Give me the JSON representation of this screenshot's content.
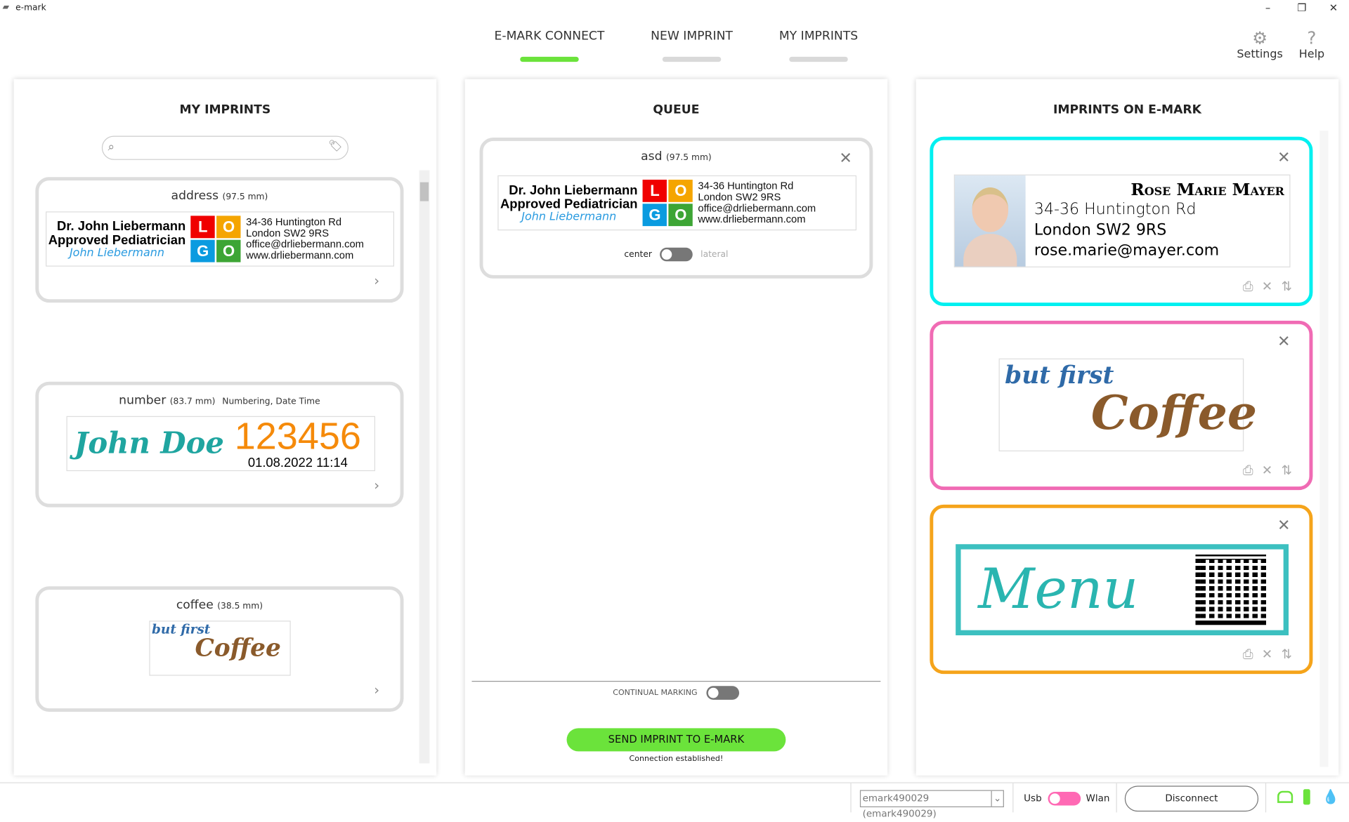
{
  "window": {
    "title": "e-mark",
    "minimize": "–",
    "restore": "❐",
    "close": "✕"
  },
  "nav": {
    "tabs": [
      {
        "label": "E-MARK CONNECT",
        "active": true
      },
      {
        "label": "NEW IMPRINT"
      },
      {
        "label": "MY IMPRINTS"
      }
    ],
    "settings": "Settings",
    "help": "Help",
    "accent": "#6be33b"
  },
  "my_imprints": {
    "title": "MY IMPRINTS",
    "search_placeholder": "",
    "items": [
      {
        "name": "address",
        "size": "(97.5 mm)"
      },
      {
        "name": "number",
        "size": "(83.7 mm)",
        "tags": "Numbering, Date Time",
        "preview_name": "John Doe",
        "preview_number": "123456",
        "preview_datetime": "01.08.2022 11:14"
      },
      {
        "name": "coffee",
        "size": "(38.5 mm)"
      }
    ]
  },
  "address_imprint": {
    "line1": "Dr. John Liebermann",
    "line2": "Approved Pediatrician",
    "signature": "John Liebermann",
    "logo": [
      "L",
      "O",
      "G",
      "O"
    ],
    "logo_colors": [
      "#f00000",
      "#f5a500",
      "#0a9be0",
      "#3da535"
    ],
    "right": [
      "34-36 Huntington Rd",
      "London SW2 9RS",
      "office@drliebermann.com",
      "www.drliebermann.com"
    ]
  },
  "coffee_imprint": {
    "line1": "but first",
    "line2": "Coffee"
  },
  "queue": {
    "title": "QUEUE",
    "item": {
      "name": "asd",
      "size": "(97.5 mm)"
    },
    "align_center": "center",
    "align_lateral": "lateral",
    "continual_marking": "CONTINUAL MARKING",
    "send_button": "SEND IMPRINT TO E-MARK",
    "status": "Connection established!",
    "send_color": "#6be33b"
  },
  "on_emark": {
    "title": "IMPRINTS ON E-MARK",
    "items": [
      {
        "border": "#00f0f0",
        "name": "Rose Marie Mayer",
        "lines": [
          "34-36 Huntington Rd",
          "London SW2 9RS",
          "rose.marie@mayer.com"
        ]
      },
      {
        "border": "#f06bb4"
      },
      {
        "border": "#f5a41b",
        "text": "Menu"
      }
    ]
  },
  "footer": {
    "device": "emark490029 (emark490029)",
    "usb": "Usb",
    "wlan": "Wlan",
    "disconnect": "Disconnect",
    "toggle_color": "#ff69b4"
  }
}
